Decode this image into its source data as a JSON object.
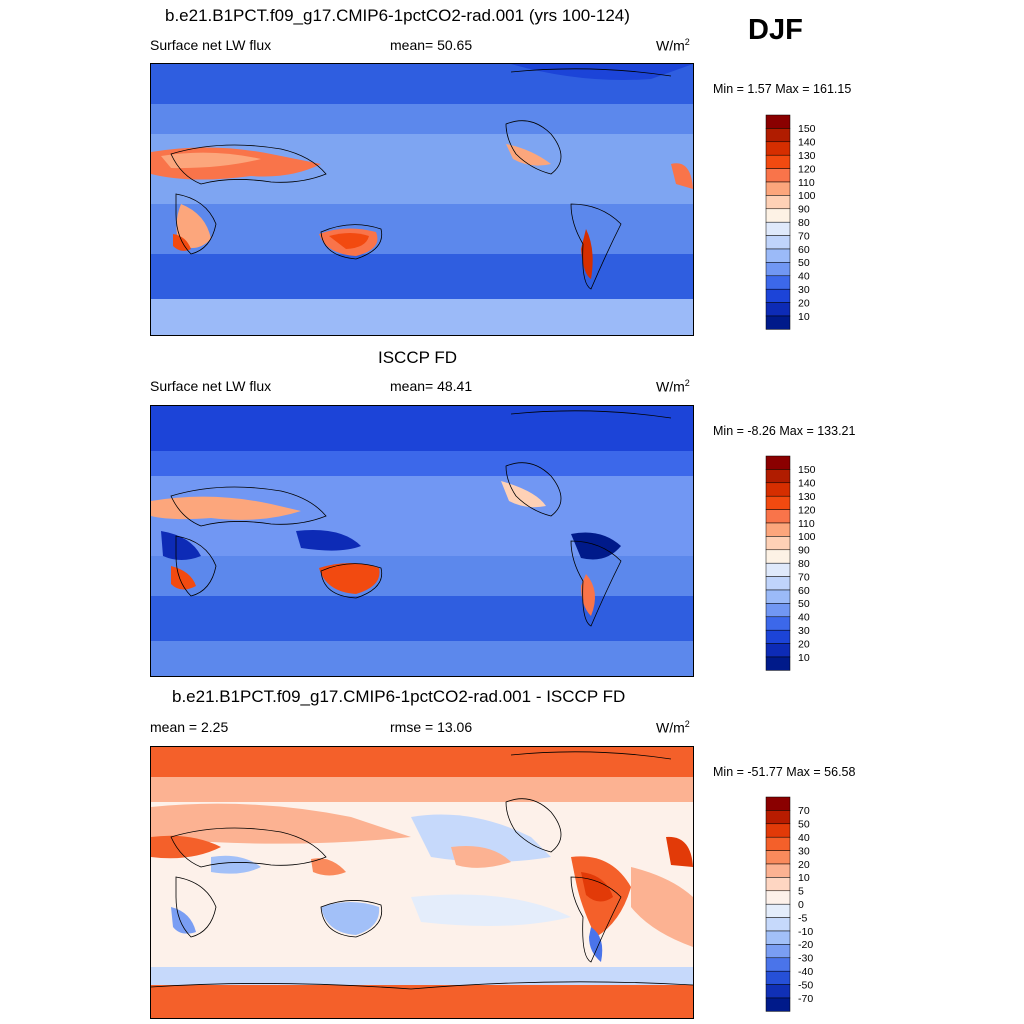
{
  "season": "DJF",
  "panels": [
    {
      "title": "b.e21.B1PCT.f09_g17.CMIP6-1pctCO2-rad.001 (yrs 100-124)",
      "left_label": "Surface net LW flux",
      "center_label": "mean=  50.65",
      "units": "W/m",
      "units_sup": "2",
      "minmax": "Min =   1.57 Max = 161.15",
      "colorbar": {
        "labels": [
          "150",
          "140",
          "130",
          "120",
          "110",
          "100",
          "90",
          "80",
          "70",
          "60",
          "50",
          "40",
          "30",
          "20",
          "10"
        ],
        "colors": [
          "#8a0000",
          "#b01c00",
          "#d62e00",
          "#f24a10",
          "#f9744a",
          "#fca67c",
          "#fed1b6",
          "#fdf2e5",
          "#dfe9fb",
          "#c0d4fb",
          "#9bbaf8",
          "#7197f3",
          "#3c68ea",
          "#1c44d8",
          "#0d2bb6",
          "#001a8a"
        ]
      }
    },
    {
      "title": "ISCCP FD",
      "left_label": "Surface net LW flux",
      "center_label": "mean=  48.41",
      "units": "W/m",
      "units_sup": "2",
      "minmax": "Min =  -8.26 Max = 133.21",
      "colorbar": {
        "labels": [
          "150",
          "140",
          "130",
          "120",
          "110",
          "100",
          "90",
          "80",
          "70",
          "60",
          "50",
          "40",
          "30",
          "20",
          "10"
        ],
        "colors": [
          "#8a0000",
          "#b01c00",
          "#d62e00",
          "#f24a10",
          "#f9744a",
          "#fca67c",
          "#fed1b6",
          "#fdf2e5",
          "#dfe9fb",
          "#c0d4fb",
          "#9bbaf8",
          "#7197f3",
          "#3c68ea",
          "#1c44d8",
          "#0d2bb6",
          "#001a8a"
        ]
      }
    },
    {
      "title": "b.e21.B1PCT.f09_g17.CMIP6-1pctCO2-rad.001 - ISCCP FD",
      "left_label": "mean =   2.25",
      "center_label": "rmse =  13.06",
      "units": "W/m",
      "units_sup": "2",
      "minmax": "Min = -51.77 Max =  56.58",
      "colorbar": {
        "labels": [
          "70",
          "50",
          "40",
          "30",
          "20",
          "10",
          "5",
          "0",
          "-5",
          "-10",
          "-20",
          "-30",
          "-40",
          "-50",
          "-70"
        ],
        "colors": [
          "#8a0000",
          "#b81c00",
          "#e23a08",
          "#f4602a",
          "#fa8a5c",
          "#fcb292",
          "#fed6c2",
          "#fdf1ea",
          "#e4edfb",
          "#c6d9fb",
          "#a2c0f8",
          "#7a9ef3",
          "#4a74ea",
          "#2650d8",
          "#1030b6",
          "#001a8a"
        ]
      }
    }
  ]
}
